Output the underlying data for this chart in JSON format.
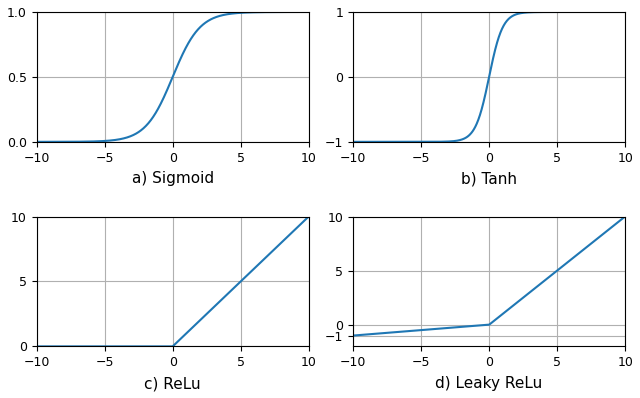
{
  "line_color": "#1f77b4",
  "line_width": 1.5,
  "grid_color": "#b0b0b0",
  "grid_linewidth": 0.8,
  "background_color": "#ffffff",
  "xlim": [
    -10,
    10
  ],
  "xticks": [
    -10,
    -5,
    0,
    5,
    10
  ],
  "subplot_labels": [
    "a) Sigmoid",
    "b) Tanh",
    "c) ReLu",
    "d) Leaky ReLu"
  ],
  "sigmoid_ylim": [
    0.0,
    1.0
  ],
  "sigmoid_yticks": [
    0.0,
    0.5,
    1.0
  ],
  "tanh_ylim": [
    -1.0,
    1.0
  ],
  "tanh_yticks": [
    -1,
    0,
    1
  ],
  "relu_ylim": [
    0.0,
    10.0
  ],
  "relu_yticks": [
    0,
    5,
    10
  ],
  "leaky_ylim": [
    -2.0,
    10.0
  ],
  "leaky_yticks": [
    -1,
    0,
    5,
    10
  ],
  "leaky_alpha": 0.1,
  "label_fontsize": 11,
  "tick_fontsize": 9,
  "fig_width": 6.4,
  "fig_height": 3.98,
  "dpi": 100
}
